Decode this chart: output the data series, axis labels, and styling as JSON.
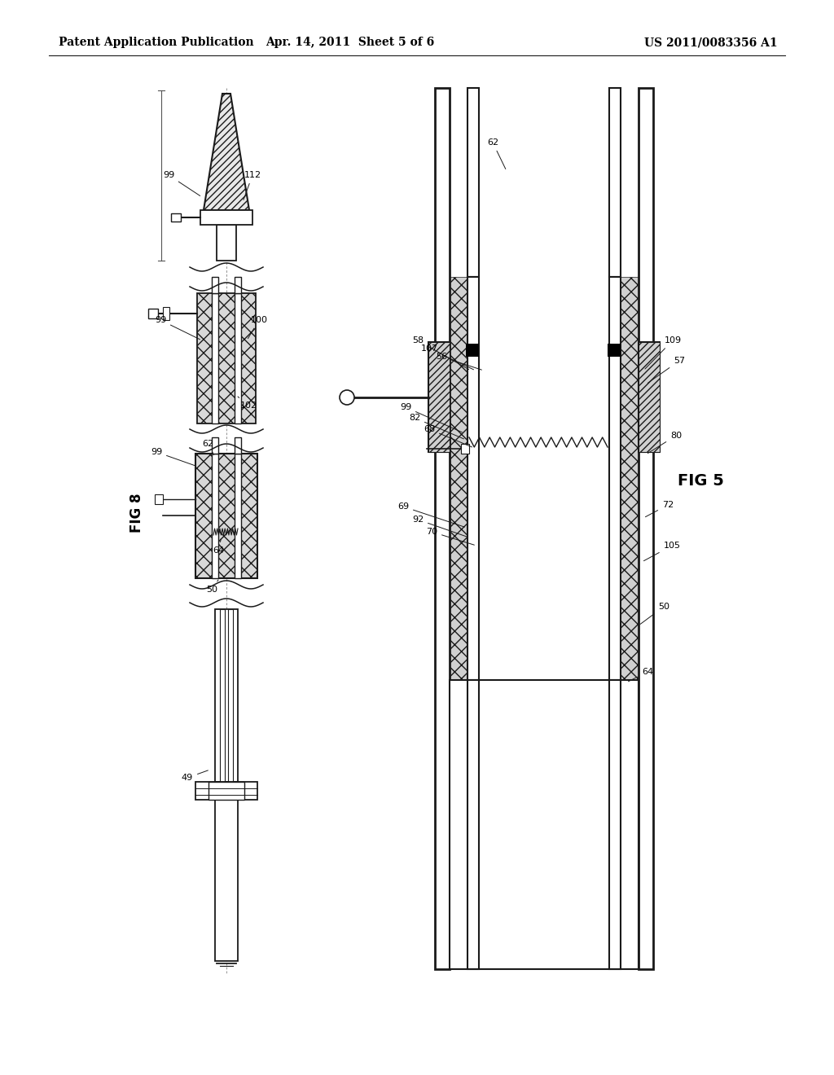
{
  "bg_color": "#ffffff",
  "line_color": "#1a1a1a",
  "header_left": "Patent Application Publication",
  "header_mid": "Apr. 14, 2011  Sheet 5 of 6",
  "header_right": "US 2011/0083356 A1",
  "fig5_label": "FIG 5",
  "fig8_label": "FIG 8",
  "fig8_annotations": [
    [
      "99",
      207,
      215,
      248,
      242
    ],
    [
      "112",
      310,
      215,
      298,
      248
    ],
    [
      "99",
      197,
      393,
      248,
      418
    ],
    [
      "100",
      318,
      393,
      303,
      418
    ],
    [
      "102",
      305,
      498,
      292,
      487
    ],
    [
      "99",
      192,
      555,
      243,
      573
    ],
    [
      "62",
      255,
      545,
      264,
      561
    ],
    [
      "64",
      268,
      676,
      272,
      659
    ],
    [
      "50",
      260,
      724,
      268,
      712
    ],
    [
      "49",
      230,
      955,
      258,
      945
    ]
  ],
  "fig5_annotations": [
    [
      "62",
      605,
      175,
      622,
      210
    ],
    [
      "58",
      513,
      418,
      578,
      455
    ],
    [
      "107",
      527,
      428,
      584,
      455
    ],
    [
      "56",
      542,
      438,
      594,
      455
    ],
    [
      "109",
      826,
      418,
      790,
      455
    ],
    [
      "57",
      834,
      443,
      793,
      472
    ],
    [
      "99",
      498,
      500,
      570,
      532
    ],
    [
      "82",
      509,
      513,
      572,
      540
    ],
    [
      "68",
      527,
      527,
      582,
      550
    ],
    [
      "80",
      830,
      535,
      793,
      558
    ],
    [
      "72",
      820,
      620,
      790,
      636
    ],
    [
      "69",
      495,
      622,
      573,
      648
    ],
    [
      "92",
      513,
      638,
      576,
      660
    ],
    [
      "70",
      530,
      653,
      585,
      670
    ],
    [
      "105",
      825,
      670,
      788,
      690
    ],
    [
      "50",
      815,
      745,
      784,
      768
    ],
    [
      "64",
      795,
      825,
      769,
      838
    ]
  ]
}
